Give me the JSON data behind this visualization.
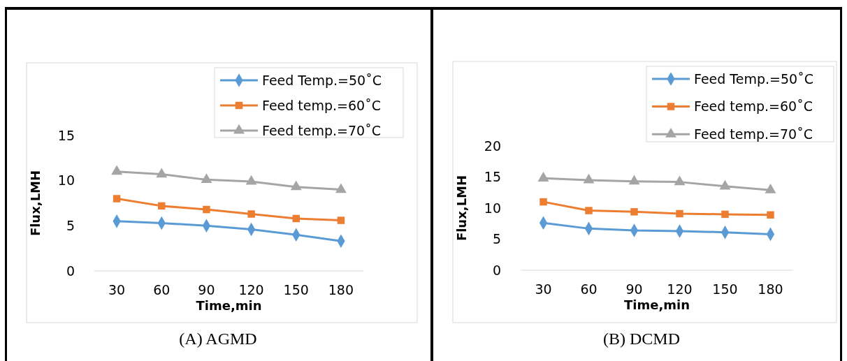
{
  "chart_data": [
    {
      "type": "line",
      "title": "(A) AGMD",
      "xlabel": "Time,min",
      "ylabel": "Flux,LMH",
      "categories": [
        "30",
        "60",
        "90",
        "120",
        "150",
        "180"
      ],
      "ylim": [
        0,
        15
      ],
      "yticks": [
        0,
        5,
        10,
        15
      ],
      "grid": false,
      "legend": "top right",
      "series": [
        {
          "name": "Feed Temp.=50˚C",
          "color": "#5b9bd5",
          "marker": "diamond",
          "values": [
            5.5,
            5.3,
            5.0,
            4.6,
            4.0,
            3.3
          ]
        },
        {
          "name": "Feed temp.=60˚C",
          "color": "#ed7d31",
          "marker": "square",
          "values": [
            8.0,
            7.2,
            6.8,
            6.3,
            5.8,
            5.6
          ]
        },
        {
          "name": "Feed temp.=70˚C",
          "color": "#a5a5a5",
          "marker": "triangle",
          "values": [
            11.0,
            10.7,
            10.1,
            9.9,
            9.3,
            9.0
          ]
        }
      ]
    },
    {
      "type": "line",
      "title": "(B) DCMD",
      "xlabel": "Time,min",
      "ylabel": "Flux,LMH",
      "categories": [
        "30",
        "60",
        "90",
        "120",
        "150",
        "180"
      ],
      "ylim": [
        0,
        20
      ],
      "yticks": [
        0,
        5,
        10,
        15,
        20
      ],
      "grid": false,
      "legend": "top right",
      "series": [
        {
          "name": "Feed Temp.=50˚C",
          "color": "#5b9bd5",
          "marker": "diamond",
          "values": [
            7.6,
            6.7,
            6.4,
            6.3,
            6.1,
            5.8
          ]
        },
        {
          "name": "Feed temp.=60˚C",
          "color": "#ed7d31",
          "marker": "square",
          "values": [
            11.0,
            9.6,
            9.4,
            9.1,
            9.0,
            8.9
          ]
        },
        {
          "name": "Feed temp.=70˚C",
          "color": "#a5a5a5",
          "marker": "triangle",
          "values": [
            14.8,
            14.5,
            14.3,
            14.2,
            13.5,
            12.9
          ]
        }
      ]
    }
  ]
}
